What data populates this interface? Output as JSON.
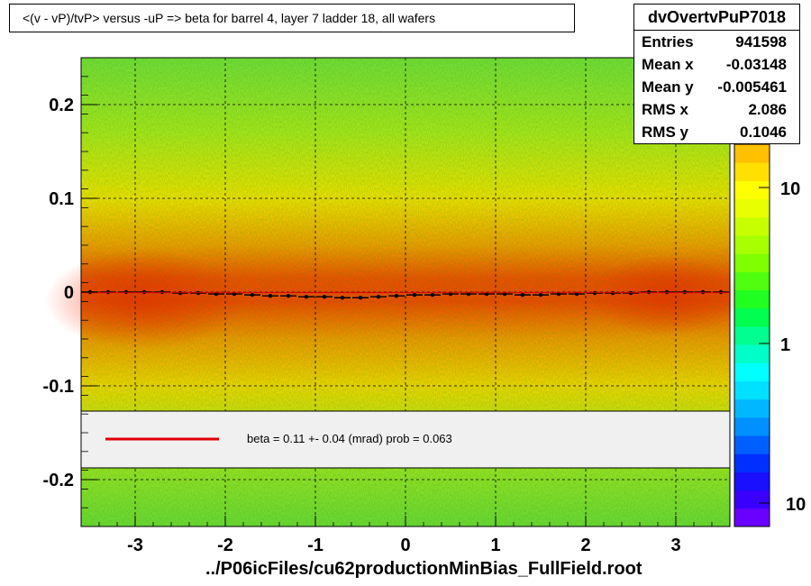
{
  "title": "<(v - vP)/tvP> versus  -uP => beta for barrel 4, layer 7 ladder 18, all wafers",
  "stats": {
    "name": "dvOvertvPuP7018",
    "rows": [
      {
        "label": "Entries",
        "value": "941598"
      },
      {
        "label": "Mean x",
        "value": "-0.03148"
      },
      {
        "label": "Mean y",
        "value": "-0.005461"
      },
      {
        "label": "RMS x",
        "value": "2.086"
      },
      {
        "label": "RMS y",
        "value": "0.1046"
      }
    ]
  },
  "x_title": "../P06icFiles/cu62productionMinBias_FullField.root",
  "legend": {
    "text": "beta =    0.11 +-  0.04 (mrad) prob = 0.063",
    "line_color": "#e00000"
  },
  "chart_data": {
    "type": "heatmap",
    "title": "<(v - vP)/tvP> versus  -uP => beta for barrel 4, layer 7 ladder 18, all wafers",
    "xlabel": "../P06icFiles/cu62productionMinBias_FullField.root",
    "ylabel": "",
    "xlim": [
      -3.6,
      3.6
    ],
    "ylim": [
      -0.25,
      0.25
    ],
    "x_ticks": [
      -3,
      -2,
      -1,
      0,
      1,
      2,
      3
    ],
    "y_ticks": [
      -0.2,
      -0.1,
      0,
      0.1,
      0.2
    ],
    "x_tick_labels": [
      "-3",
      "-2",
      "-1",
      "0",
      "1",
      "2",
      "3"
    ],
    "y_tick_labels": [
      "-0.2",
      "-0.1",
      "0",
      "0.1",
      "0.2"
    ],
    "grid": true,
    "colorbar": {
      "scale": "log",
      "tick_labels": [
        "10",
        "1",
        "10"
      ],
      "palette": [
        "#6a00ff",
        "#3a00ff",
        "#1a10ff",
        "#0030ff",
        "#0060ff",
        "#0090ff",
        "#00b8ff",
        "#00e0ff",
        "#00ffff",
        "#00ffc8",
        "#00ff90",
        "#00ff50",
        "#20ff20",
        "#50ff10",
        "#80ff00",
        "#a8ff00",
        "#c8ff00",
        "#e8ff00",
        "#ffff00",
        "#ffe000",
        "#ffc000"
      ]
    },
    "profile_points": {
      "x": [
        -3.5,
        -3.3,
        -3.1,
        -2.9,
        -2.7,
        -2.5,
        -2.3,
        -2.1,
        -1.9,
        -1.7,
        -1.5,
        -1.3,
        -1.1,
        -0.9,
        -0.7,
        -0.5,
        -0.3,
        -0.1,
        0.1,
        0.3,
        0.5,
        0.7,
        0.9,
        1.1,
        1.3,
        1.5,
        1.7,
        1.9,
        2.1,
        2.3,
        2.5,
        2.7,
        2.9,
        3.1,
        3.3,
        3.5
      ],
      "y": [
        0.0,
        0.0,
        0.0,
        0.0,
        0.0,
        -0.001,
        -0.001,
        -0.002,
        -0.002,
        -0.003,
        -0.004,
        -0.004,
        -0.005,
        -0.005,
        -0.006,
        -0.006,
        -0.005,
        -0.004,
        -0.003,
        -0.003,
        -0.002,
        -0.002,
        -0.002,
        -0.002,
        -0.003,
        -0.003,
        -0.002,
        -0.002,
        -0.001,
        -0.001,
        -0.001,
        0.0,
        0.0,
        0.0,
        0.0,
        0.0
      ]
    },
    "fit_line": {
      "x": [
        -3.6,
        3.6
      ],
      "y": [
        -0.0005,
        -0.0005
      ]
    }
  }
}
